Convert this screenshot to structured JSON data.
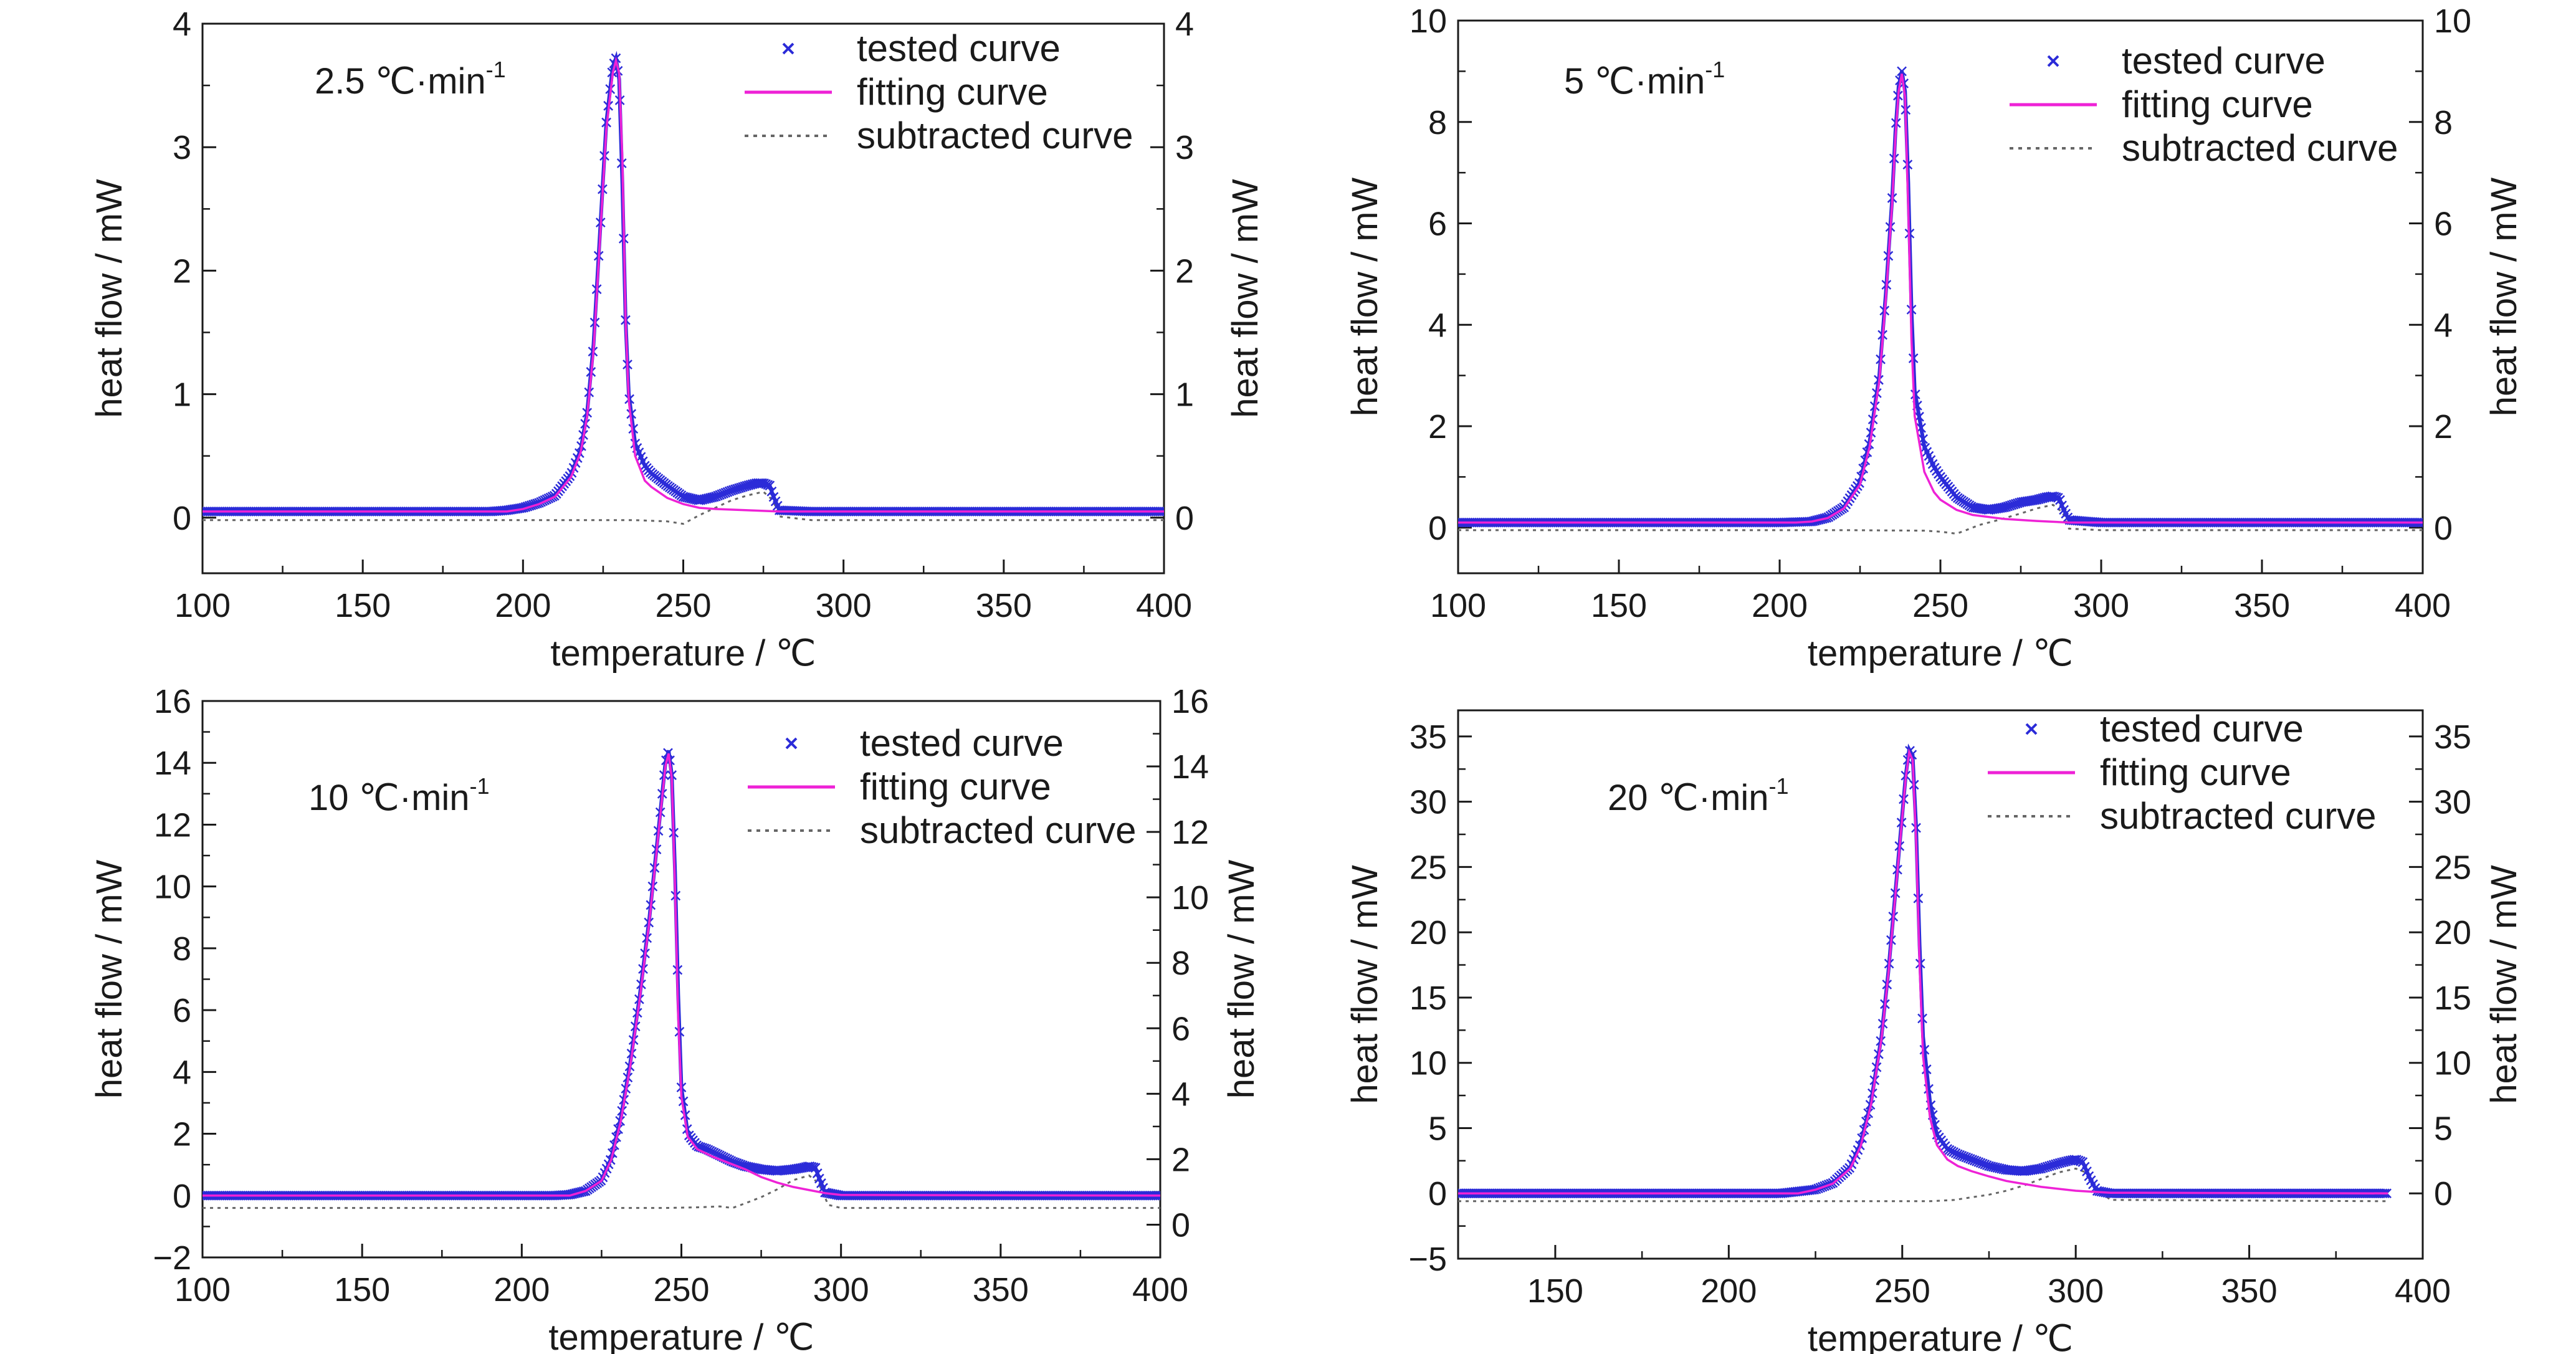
{
  "colors": {
    "tested": "#2b2bd8",
    "fitting": "#ee22d6",
    "subtracted": "#666666",
    "axis": "#1a1a1a"
  },
  "legend": {
    "tested": "tested curve",
    "fitting": "fitting curve",
    "subtracted": "subtracted curve"
  },
  "chart_data": [
    {
      "type": "line",
      "rate_label": "2.5 ℃·min",
      "rate_exp": "-1",
      "xlabel": "temperature / ℃",
      "ylabel": "heat flow / mW",
      "xlim": [
        100,
        400
      ],
      "xticks": [
        100,
        150,
        200,
        250,
        300,
        350,
        400
      ],
      "xtick_labels": [
        "100",
        "150",
        "200",
        "250",
        "300",
        "350",
        "400"
      ],
      "ylim": [
        -0.45,
        4
      ],
      "yticks": [
        0,
        1,
        2,
        3,
        4
      ],
      "ytick_labels": [
        "0",
        "1",
        "2",
        "3",
        "4"
      ],
      "y2lim": [
        -0.45,
        4
      ],
      "y2ticks": [
        0,
        1,
        2,
        3,
        4
      ],
      "y2tick_labels": [
        "0",
        "1",
        "2",
        "3",
        "4"
      ],
      "series": [
        {
          "key": "tested",
          "x": [
            100,
            190,
            195,
            200,
            205,
            210,
            215,
            218,
            220,
            222,
            224,
            226,
            228,
            229,
            230,
            231,
            232,
            233,
            235,
            238,
            240,
            245,
            250,
            255,
            260,
            265,
            270,
            273,
            275,
            277,
            278,
            280,
            290,
            400
          ],
          "y": [
            0.05,
            0.05,
            0.06,
            0.08,
            0.12,
            0.18,
            0.35,
            0.55,
            0.85,
            1.4,
            2.3,
            3.2,
            3.65,
            3.72,
            3.55,
            2.7,
            1.6,
            1.0,
            0.6,
            0.42,
            0.36,
            0.26,
            0.17,
            0.14,
            0.17,
            0.22,
            0.26,
            0.28,
            0.28,
            0.26,
            0.18,
            0.06,
            0.05,
            0.05
          ]
        },
        {
          "key": "fitting",
          "x": [
            100,
            195,
            200,
            205,
            210,
            215,
            218,
            220,
            222,
            224,
            226,
            228,
            229,
            230,
            231,
            232,
            233,
            235,
            238,
            240,
            245,
            250,
            255,
            260,
            270,
            280,
            290,
            400
          ],
          "y": [
            0.05,
            0.05,
            0.07,
            0.11,
            0.17,
            0.33,
            0.53,
            0.82,
            1.35,
            2.25,
            3.15,
            3.6,
            3.7,
            3.6,
            2.9,
            1.6,
            0.95,
            0.5,
            0.3,
            0.25,
            0.16,
            0.11,
            0.08,
            0.07,
            0.06,
            0.05,
            0.05,
            0.05
          ]
        },
        {
          "key": "subtracted",
          "x": [
            100,
            200,
            220,
            235,
            245,
            250,
            255,
            260,
            265,
            270,
            275,
            278,
            280,
            290,
            400
          ],
          "y": [
            -0.02,
            -0.02,
            -0.02,
            -0.02,
            -0.03,
            -0.05,
            0.02,
            0.08,
            0.14,
            0.18,
            0.21,
            0.14,
            0.01,
            -0.02,
            -0.02
          ]
        }
      ]
    },
    {
      "type": "line",
      "rate_label": "5 ℃·min",
      "rate_exp": "-1",
      "xlabel": "temperature / ℃",
      "ylabel": "heat flow / mW",
      "xlim": [
        100,
        400
      ],
      "xticks": [
        100,
        150,
        200,
        250,
        300,
        350,
        400
      ],
      "xtick_labels": [
        "100",
        "150",
        "200",
        "250",
        "300",
        "350",
        "400"
      ],
      "ylim": [
        -0.9,
        10
      ],
      "yticks": [
        0,
        2,
        4,
        6,
        8,
        10
      ],
      "ytick_labels": [
        "0",
        "2",
        "4",
        "6",
        "8",
        "10"
      ],
      "y2lim": [
        -0.9,
        10
      ],
      "y2ticks": [
        0,
        2,
        4,
        6,
        8,
        10
      ],
      "y2tick_labels": [
        "0",
        "2",
        "4",
        "6",
        "8",
        "10"
      ],
      "series": [
        {
          "key": "tested",
          "x": [
            100,
            200,
            210,
            215,
            220,
            225,
            228,
            231,
            233,
            235,
            236,
            237,
            238,
            239,
            240,
            241,
            242,
            245,
            248,
            250,
            255,
            260,
            265,
            270,
            275,
            280,
            283,
            285,
            287,
            288,
            290,
            300,
            400
          ],
          "y": [
            0.1,
            0.1,
            0.12,
            0.2,
            0.4,
            0.9,
            1.7,
            3.0,
            4.6,
            6.5,
            7.8,
            8.7,
            9.0,
            8.6,
            6.8,
            4.3,
            2.7,
            1.6,
            1.2,
            1.0,
            0.6,
            0.4,
            0.35,
            0.4,
            0.5,
            0.55,
            0.6,
            0.62,
            0.58,
            0.4,
            0.15,
            0.1,
            0.1
          ]
        },
        {
          "key": "fitting",
          "x": [
            100,
            205,
            210,
            215,
            220,
            225,
            228,
            231,
            233,
            235,
            236,
            237,
            238,
            239,
            240,
            241,
            242,
            245,
            248,
            250,
            255,
            260,
            270,
            280,
            290,
            400
          ],
          "y": [
            0.1,
            0.1,
            0.12,
            0.19,
            0.38,
            0.85,
            1.6,
            2.9,
            4.5,
            6.4,
            7.7,
            8.6,
            8.95,
            8.5,
            6.3,
            3.7,
            2.2,
            1.1,
            0.7,
            0.55,
            0.35,
            0.25,
            0.17,
            0.13,
            0.1,
            0.1
          ]
        },
        {
          "key": "subtracted",
          "x": [
            100,
            200,
            220,
            245,
            250,
            255,
            258,
            262,
            268,
            275,
            280,
            285,
            288,
            290,
            300,
            400
          ],
          "y": [
            -0.05,
            -0.05,
            -0.05,
            -0.06,
            -0.08,
            -0.12,
            -0.05,
            0.05,
            0.15,
            0.28,
            0.38,
            0.45,
            0.3,
            -0.02,
            -0.05,
            -0.05
          ]
        }
      ]
    },
    {
      "type": "line",
      "rate_label": "10 ℃·min",
      "rate_exp": "-1",
      "xlabel": "temperature / ℃",
      "ylabel": "heat flow / mW",
      "xlim": [
        100,
        400
      ],
      "xticks": [
        100,
        150,
        200,
        250,
        300,
        350,
        400
      ],
      "xtick_labels": [
        "100",
        "150",
        "200",
        "250",
        "300",
        "350",
        "400"
      ],
      "ylim": [
        -2,
        16
      ],
      "yticks": [
        -2,
        0,
        2,
        4,
        6,
        8,
        10,
        12,
        14,
        16
      ],
      "ytick_labels": [
        "−2",
        "0",
        "2",
        "4",
        "6",
        "8",
        "10",
        "12",
        "14",
        "16"
      ],
      "y2lim": [
        -1,
        16
      ],
      "y2ticks": [
        0,
        2,
        4,
        6,
        8,
        10,
        12,
        14,
        16
      ],
      "y2tick_labels": [
        "0",
        "2",
        "4",
        "6",
        "8",
        "10",
        "12",
        "14",
        "16"
      ],
      "series": [
        {
          "key": "tested",
          "x": [
            100,
            210,
            215,
            220,
            225,
            228,
            231,
            234,
            237,
            240,
            242,
            244,
            245,
            246,
            247,
            248,
            249,
            250,
            252,
            255,
            258,
            262,
            266,
            270,
            275,
            280,
            285,
            288,
            290,
            292,
            293,
            295,
            300,
            400
          ],
          "y": [
            0,
            0,
            0.03,
            0.15,
            0.5,
            1.2,
            2.5,
            4.3,
            6.5,
            9.0,
            11.0,
            13.0,
            14.0,
            14.4,
            13.6,
            10.5,
            6.5,
            3.5,
            2.0,
            1.6,
            1.5,
            1.3,
            1.1,
            0.95,
            0.85,
            0.8,
            0.85,
            0.9,
            0.95,
            0.9,
            0.6,
            0.1,
            0,
            0
          ]
        },
        {
          "key": "fitting",
          "x": [
            100,
            215,
            220,
            225,
            228,
            231,
            234,
            237,
            240,
            242,
            244,
            245,
            246,
            247,
            248,
            249,
            250,
            252,
            255,
            260,
            265,
            270,
            275,
            280,
            285,
            290,
            295,
            300,
            400
          ],
          "y": [
            0,
            0,
            0.15,
            0.48,
            1.15,
            2.4,
            4.2,
            6.4,
            8.9,
            10.9,
            12.9,
            13.9,
            14.3,
            13.5,
            10.0,
            5.8,
            3.2,
            1.9,
            1.5,
            1.25,
            1.05,
            0.85,
            0.6,
            0.42,
            0.28,
            0.18,
            0.08,
            0.02,
            0
          ]
        },
        {
          "key": "subtracted",
          "x": [
            100,
            220,
            245,
            255,
            262,
            266,
            270,
            275,
            280,
            285,
            290,
            293,
            296,
            300,
            400
          ],
          "y": [
            -0.4,
            -0.4,
            -0.4,
            -0.38,
            -0.35,
            -0.4,
            -0.25,
            -0.05,
            0.2,
            0.5,
            0.65,
            0.4,
            -0.3,
            -0.4,
            -0.4
          ]
        }
      ]
    },
    {
      "type": "line",
      "rate_label": "20 ℃·min",
      "rate_exp": "-1",
      "xlabel": "temperature / ℃",
      "ylabel": "heat flow / mW",
      "xlim": [
        122,
        400
      ],
      "xticks": [
        150,
        200,
        250,
        300,
        350,
        400
      ],
      "xtick_labels": [
        "150",
        "200",
        "250",
        "300",
        "350",
        "400"
      ],
      "ylim": [
        -5,
        37
      ],
      "yticks": [
        -5,
        0,
        5,
        10,
        15,
        20,
        25,
        30,
        35
      ],
      "ytick_labels": [
        "−5",
        "0",
        "5",
        "10",
        "15",
        "20",
        "25",
        "30",
        "35"
      ],
      "y2lim": [
        -5,
        37
      ],
      "y2ticks": [
        0,
        5,
        10,
        15,
        20,
        25,
        30,
        35
      ],
      "y2tick_labels": [
        "0",
        "5",
        "10",
        "15",
        "20",
        "25",
        "30",
        "35"
      ],
      "series": [
        {
          "key": "tested",
          "x": [
            122,
            215,
            225,
            230,
            235,
            238,
            241,
            244,
            246,
            248,
            250,
            251,
            252,
            253,
            254,
            255,
            256,
            258,
            260,
            263,
            266,
            270,
            275,
            280,
            285,
            290,
            295,
            298,
            300,
            302,
            304,
            306,
            310,
            390
          ],
          "y": [
            0,
            0,
            0.3,
            0.8,
            2.0,
            3.8,
            7.0,
            12.0,
            17.0,
            23.0,
            29.0,
            32.0,
            34.0,
            33.5,
            28.0,
            19.0,
            12.0,
            7.0,
            4.5,
            3.4,
            3.0,
            2.6,
            2.1,
            1.8,
            1.7,
            1.9,
            2.3,
            2.5,
            2.6,
            2.4,
            1.2,
            0.2,
            0,
            0
          ]
        },
        {
          "key": "fitting",
          "x": [
            122,
            220,
            225,
            230,
            235,
            238,
            241,
            244,
            246,
            248,
            250,
            251,
            252,
            253,
            254,
            255,
            256,
            258,
            260,
            263,
            266,
            270,
            275,
            280,
            290,
            300,
            310,
            390
          ],
          "y": [
            0,
            0,
            0.28,
            0.75,
            1.9,
            3.6,
            6.8,
            11.8,
            16.8,
            22.8,
            28.8,
            31.8,
            33.8,
            33.2,
            27.0,
            17.5,
            10.5,
            5.8,
            3.7,
            2.6,
            2.1,
            1.7,
            1.3,
            0.95,
            0.5,
            0.2,
            0.05,
            0
          ]
        },
        {
          "key": "subtracted",
          "x": [
            122,
            230,
            258,
            265,
            270,
            275,
            280,
            285,
            290,
            295,
            300,
            303,
            306,
            310,
            390
          ],
          "y": [
            -0.6,
            -0.6,
            -0.6,
            -0.5,
            -0.3,
            -0.1,
            0.2,
            0.6,
            1.1,
            1.6,
            1.9,
            1.6,
            0.4,
            -0.5,
            -0.6
          ]
        }
      ]
    }
  ]
}
